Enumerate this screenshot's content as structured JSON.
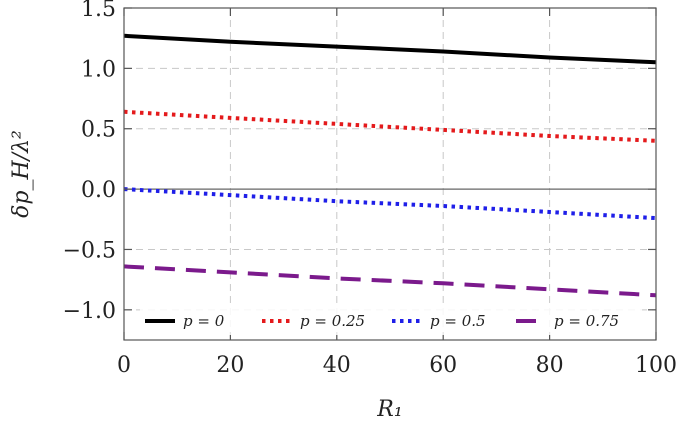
{
  "chart_data": {
    "type": "line",
    "xlabel": "R₁",
    "ylabel": "δp_H/λ²",
    "xlim": [
      0,
      100
    ],
    "ylim": [
      -1.25,
      1.5
    ],
    "grid": true,
    "zero_line": true,
    "legend_placement": "bottom-center",
    "x_ticks": [
      0,
      20,
      40,
      60,
      80,
      100
    ],
    "x_tick_labels": [
      "0",
      "20",
      "40",
      "60",
      "80",
      "100"
    ],
    "y_ticks": [
      1.5,
      1.0,
      0.5,
      0.0,
      -0.5,
      -1.0
    ],
    "y_tick_labels": [
      "1.5",
      "1.0",
      "0.5",
      "0.0",
      "−0.5",
      "−1.0"
    ],
    "x": [
      0,
      20,
      40,
      60,
      80,
      100
    ],
    "series": [
      {
        "name": "p = 0",
        "color": "#000000",
        "style": "solid",
        "values": [
          1.27,
          1.22,
          1.18,
          1.14,
          1.09,
          1.05
        ]
      },
      {
        "name": "p = 0.25",
        "color": "#e41a1c",
        "style": "dotted",
        "values": [
          0.64,
          0.59,
          0.54,
          0.49,
          0.44,
          0.4
        ]
      },
      {
        "name": "p = 0.5",
        "color": "#1f1fe8",
        "style": "dotted",
        "values": [
          0.0,
          -0.05,
          -0.1,
          -0.14,
          -0.19,
          -0.24
        ]
      },
      {
        "name": "p = 0.75",
        "color": "#7b1a8c",
        "style": "dashed",
        "values": [
          -0.64,
          -0.69,
          -0.74,
          -0.78,
          -0.83,
          -0.88
        ]
      }
    ]
  }
}
